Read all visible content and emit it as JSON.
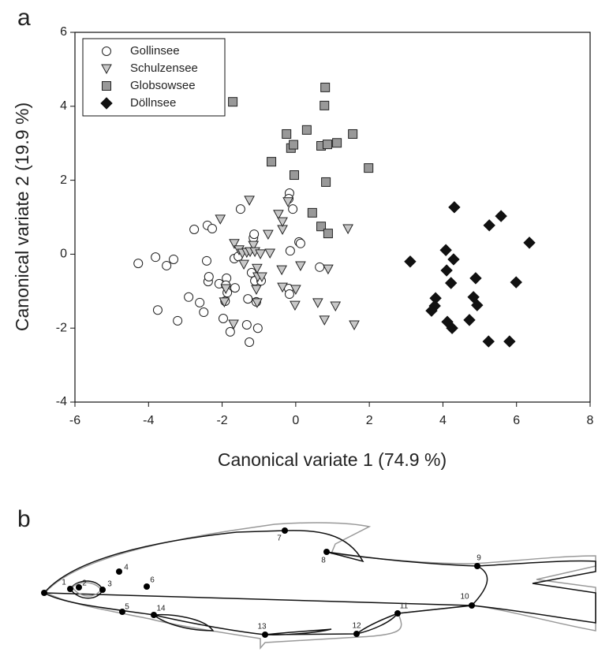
{
  "chart_data": {
    "type": "scatter",
    "panel_label": "a",
    "xlabel": "Canonical variate 1 (74.9 %)",
    "ylabel": "Canonical variate 2 (19.9 %)",
    "xlim": [
      -6,
      8
    ],
    "ylim": [
      -4,
      6
    ],
    "xticks": [
      -6,
      -4,
      -2,
      0,
      2,
      4,
      6,
      8
    ],
    "yticks": [
      -4,
      -2,
      0,
      2,
      4,
      6
    ],
    "legend": "upper left",
    "series": [
      {
        "name": "Gollinsee",
        "marker": "circle",
        "color": "#ffffff",
        "x": [
          -4.28,
          -3.81,
          -3.51,
          -3.32,
          -3.75,
          -3.21,
          -2.76,
          -2.91,
          -2.61,
          -2.5,
          -2.4,
          -2.27,
          -2.42,
          -2.38,
          -2.36,
          -2.08,
          -1.88,
          -1.9,
          -1.86,
          -1.92,
          -1.97,
          -1.78,
          -1.65,
          -1.67,
          -1.56,
          -1.5,
          -1.3,
          -1.33,
          -1.26,
          -1.15,
          -1.13,
          -1.2,
          -1.11,
          -1.07,
          -1.03,
          -0.94,
          -0.17,
          -0.19,
          -0.08,
          -0.15,
          -0.19,
          0.09,
          0.13,
          0.65,
          -0.17
        ],
        "y": [
          -0.25,
          -0.08,
          -0.31,
          -0.14,
          -1.51,
          -1.8,
          0.67,
          -1.16,
          -1.31,
          -1.57,
          0.78,
          0.69,
          -0.18,
          -0.74,
          -0.61,
          -0.8,
          -0.65,
          -0.84,
          -1.04,
          -1.27,
          -1.74,
          -2.1,
          -0.91,
          -0.12,
          -0.06,
          1.22,
          -1.21,
          -1.91,
          -2.38,
          0.44,
          0.54,
          -0.5,
          -0.72,
          -1.29,
          -2.0,
          -0.72,
          1.65,
          1.5,
          1.22,
          0.09,
          -0.93,
          0.33,
          0.29,
          -0.35,
          -1.08
        ]
      },
      {
        "name": "Schulzensee",
        "marker": "triangle",
        "color": "#c8c8c8",
        "x": [
          -1.26,
          -2.05,
          -1.9,
          -1.94,
          -1.69,
          -1.67,
          -1.54,
          -1.45,
          -1.41,
          -1.33,
          -1.24,
          -1.15,
          -1.11,
          -1.05,
          -1.03,
          -0.96,
          -1.07,
          -1.05,
          -0.92,
          -0.75,
          -0.7,
          -0.47,
          -0.36,
          -0.36,
          -0.38,
          -0.36,
          -0.21,
          0.0,
          -0.02,
          0.13,
          0.6,
          0.78,
          0.88,
          1.08,
          1.42,
          1.59
        ],
        "y": [
          1.46,
          0.95,
          -0.93,
          -1.29,
          -1.89,
          0.29,
          0.12,
          0.03,
          -0.27,
          0.05,
          0.07,
          0.24,
          0.07,
          -0.38,
          -0.61,
          0.01,
          -0.95,
          -1.31,
          -0.61,
          0.54,
          0.03,
          1.08,
          0.67,
          0.88,
          -0.42,
          -0.89,
          1.42,
          -0.95,
          -1.38,
          -0.31,
          -1.31,
          -1.78,
          -0.4,
          -1.4,
          0.69,
          -1.91
        ]
      },
      {
        "name": "Globsowsee",
        "marker": "square",
        "color": "#999999",
        "x": [
          -1.71,
          -0.66,
          -0.25,
          -0.13,
          -0.06,
          -0.04,
          0.3,
          0.45,
          0.69,
          0.69,
          0.8,
          0.78,
          0.82,
          0.86,
          0.88,
          1.12,
          1.55,
          1.98
        ],
        "y": [
          4.12,
          2.5,
          3.25,
          2.87,
          2.96,
          2.14,
          3.36,
          1.12,
          2.93,
          0.75,
          4.51,
          4.02,
          1.95,
          2.97,
          0.56,
          3.01,
          3.25,
          2.33
        ]
      },
      {
        "name": "Döllnsee",
        "marker": "diamond",
        "color": "#111111",
        "x": [
          3.11,
          3.8,
          3.78,
          3.69,
          4.08,
          4.1,
          4.31,
          4.29,
          4.22,
          4.25,
          4.12,
          4.83,
          4.89,
          4.93,
          5.24,
          5.26,
          5.58,
          5.81,
          5.99,
          6.35,
          4.72
        ],
        "y": [
          -0.2,
          -1.19,
          -1.4,
          -1.53,
          0.11,
          -0.44,
          1.27,
          -0.14,
          -0.78,
          -2.0,
          -1.83,
          -1.16,
          -0.65,
          -1.38,
          -2.36,
          0.78,
          1.03,
          -2.36,
          -0.76,
          0.31,
          -1.78
        ]
      }
    ]
  },
  "figure_b": {
    "panel_label": "b",
    "landmarks": [
      "1",
      "2",
      "3",
      "4",
      "5",
      "6",
      "7",
      "8",
      "9",
      "10",
      "11",
      "12",
      "13",
      "14"
    ]
  }
}
